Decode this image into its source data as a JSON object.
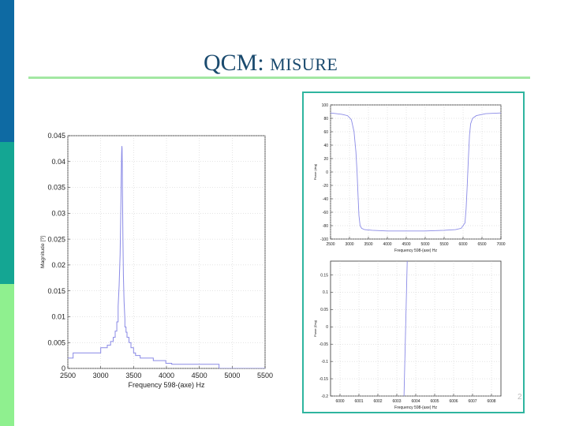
{
  "slide": {
    "title_main": "QCM:",
    "title_sub": "MISURE",
    "page_number": "2"
  },
  "colors": {
    "bar_top": "#0e6aa3",
    "bar_middle": "#14a693",
    "bar_bottom": "#8ff08f",
    "rule": "#a3e8a3",
    "frame": "#2fb59f",
    "title": "#1a4a6e",
    "series": "#8a8ae6"
  },
  "chart_data": [
    {
      "type": "line",
      "title": "",
      "xlabel": "Frequency 598-(axe) Hz",
      "ylabel": "Magnitude [?]",
      "xlim": [
        2500,
        5500
      ],
      "ylim": [
        0,
        0.045
      ],
      "xticks": [
        2500,
        3000,
        3500,
        4000,
        4500,
        5000,
        5500
      ],
      "xtick_labels": [
        "2500",
        "3000",
        "3500",
        "4000",
        "4500",
        "5000",
        "5500"
      ],
      "yticks": [
        0,
        0.005,
        0.01,
        0.015,
        0.02,
        0.025,
        0.03,
        0.035,
        0.04,
        0.045
      ],
      "ytick_labels": [
        "0",
        "0.005",
        "0.01",
        "0.015",
        "0.02",
        "0.025",
        "0.03",
        "0.035",
        "0.04",
        "0.045"
      ],
      "grid": true,
      "series": [
        {
          "x": [
            2500,
            2580,
            2580,
            3000,
            3000,
            3100,
            3100,
            3150,
            3150,
            3190,
            3190,
            3220,
            3220,
            3245,
            3245,
            3265,
            3265,
            3280,
            3295,
            3305,
            3312,
            3318,
            3322,
            3325,
            3328,
            3332,
            3338,
            3345,
            3355,
            3368,
            3368,
            3385,
            3385,
            3400,
            3400,
            3430,
            3430,
            3460,
            3460,
            3500,
            3500,
            3530,
            3530,
            3600,
            3600,
            3800,
            3800,
            3990,
            3990,
            4080,
            4080,
            4800,
            4800,
            5500
          ],
          "y": [
            0.002,
            0.002,
            0.003,
            0.003,
            0.004,
            0.004,
            0.0045,
            0.0045,
            0.0052,
            0.0052,
            0.006,
            0.006,
            0.0072,
            0.0072,
            0.009,
            0.009,
            0.012,
            0.016,
            0.022,
            0.03,
            0.037,
            0.0415,
            0.043,
            0.0425,
            0.039,
            0.033,
            0.025,
            0.018,
            0.013,
            0.0095,
            0.008,
            0.008,
            0.007,
            0.007,
            0.006,
            0.006,
            0.005,
            0.005,
            0.004,
            0.004,
            0.003,
            0.003,
            0.0025,
            0.0025,
            0.002,
            0.002,
            0.0015,
            0.0015,
            0.001,
            0.001,
            0.0008,
            0.0008,
            0.0,
            0.0
          ]
        }
      ]
    },
    {
      "type": "line",
      "title": "",
      "xlabel": "Frequency 598-(axe) Hz",
      "ylabel": "Phase (deg)",
      "xlim": [
        2500,
        7000
      ],
      "ylim": [
        -100,
        100
      ],
      "xticks": [
        2500,
        3000,
        3500,
        4000,
        4500,
        5000,
        5500,
        6000,
        6500,
        7000
      ],
      "xtick_labels": [
        "2500",
        "3000",
        "3500",
        "4000",
        "4500",
        "5000",
        "5500",
        "6000",
        "6500",
        "7000"
      ],
      "yticks": [
        -100,
        -80,
        -60,
        -40,
        -20,
        0,
        20,
        40,
        60,
        80,
        100
      ],
      "ytick_labels": [
        "-100",
        "-80",
        "-60",
        "-40",
        "-20",
        "0",
        "20",
        "40",
        "60",
        "80",
        "100"
      ],
      "grid": true,
      "series": [
        {
          "x": [
            2500,
            2800,
            2950,
            3050,
            3120,
            3170,
            3200,
            3230,
            3250,
            3280,
            3320,
            3400,
            3600,
            4000,
            4500,
            5000,
            5500,
            5800,
            5950,
            6050,
            6080,
            6110,
            6140,
            6170,
            6200,
            6250,
            6350,
            6600,
            7000
          ],
          "y": [
            88,
            86,
            84,
            78,
            60,
            30,
            0,
            -40,
            -65,
            -80,
            -84,
            -86,
            -87,
            -88,
            -88,
            -88,
            -87,
            -86,
            -84,
            -76,
            -55,
            -20,
            20,
            55,
            72,
            80,
            84,
            87,
            88
          ]
        }
      ]
    },
    {
      "type": "line",
      "title": "",
      "xlabel": "Frequency 598-(axe) Hz",
      "ylabel": "Phase (Deg)",
      "xlim": [
        5999.5,
        6008.5
      ],
      "ylim": [
        -0.2,
        0.19
      ],
      "xticks": [
        6000,
        6001,
        6002,
        6003,
        6004,
        6005,
        6006,
        6007,
        6008
      ],
      "xtick_labels": [
        "6000",
        "6001",
        "6002",
        "6003",
        "6004",
        "6005",
        "6006",
        "6007",
        "6008"
      ],
      "yticks": [
        -0.2,
        -0.15,
        -0.1,
        -0.05,
        0,
        0.05,
        0.1,
        0.15
      ],
      "ytick_labels": [
        "-0.2",
        "-0.15",
        "-0.1",
        "-0.05",
        "0",
        "0.05",
        "0.1",
        "0.15"
      ],
      "grid": true,
      "series": [
        {
          "x": [
            6003.38,
            6003.55
          ],
          "y": [
            -0.2,
            0.19
          ]
        }
      ]
    }
  ]
}
